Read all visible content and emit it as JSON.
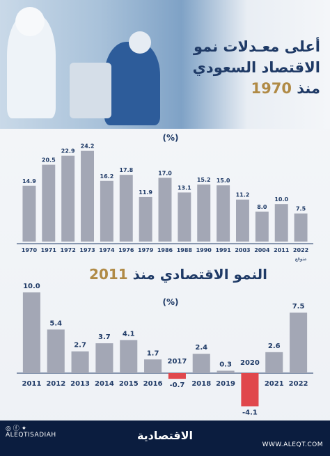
{
  "header": {
    "title_line1": "أعلى معـدلات نمو",
    "title_line2": "الاقتصاد السعودي",
    "title_line3_prefix": "منذ ",
    "title_line3_year": "1970"
  },
  "section2_title": {
    "prefix": "النمو الاقتصادي منذ ",
    "year": "2011"
  },
  "footer": {
    "handle": "ALEQTISADIAH",
    "brand": "الاقتصادية",
    "website": "WWW.ALEQT.COM",
    "social_icons": [
      "instagram-icon",
      "facebook-icon",
      "twitter-icon"
    ]
  },
  "chart_data": [
    {
      "type": "bar",
      "ylabel": "(%)",
      "categories": [
        "1970",
        "1971",
        "1972",
        "1973",
        "1974",
        "1976",
        "1979",
        "1986",
        "1988",
        "1990",
        "1991",
        "2003",
        "2004",
        "2011",
        "2022"
      ],
      "values": [
        14.9,
        20.5,
        22.9,
        24.2,
        16.2,
        17.8,
        11.9,
        17.0,
        13.1,
        15.2,
        15.0,
        11.2,
        8.0,
        10.0,
        7.5
      ],
      "value_labels": [
        "14.9",
        "20.5",
        "22.9",
        "24.2",
        "16.2",
        "17.8",
        "11.9",
        "17.0",
        "13.1",
        "15.2",
        "15.0",
        "11.2",
        "8.0",
        "10.0",
        "7.5"
      ],
      "annotation": "متوقع",
      "bar_color": "#a3a7b5",
      "ylim": [
        0,
        26
      ]
    },
    {
      "type": "bar",
      "ylabel": "(%)",
      "categories": [
        "2011",
        "2012",
        "2013",
        "2014",
        "2015",
        "2016",
        "2017",
        "2018",
        "2019",
        "2020",
        "2021",
        "2022"
      ],
      "values": [
        10.0,
        5.4,
        2.7,
        3.7,
        4.1,
        1.7,
        -0.7,
        2.4,
        0.3,
        -4.1,
        2.6,
        7.5
      ],
      "value_labels": [
        "10.0",
        "5.4",
        "2.7",
        "3.7",
        "4.1",
        "1.7",
        "-0.7",
        "2.4",
        "0.3",
        "-4.1",
        "2.6",
        "7.5"
      ],
      "positive_color": "#a3a7b5",
      "negative_color": "#e0474c",
      "ylim": [
        -4.5,
        11
      ]
    }
  ]
}
